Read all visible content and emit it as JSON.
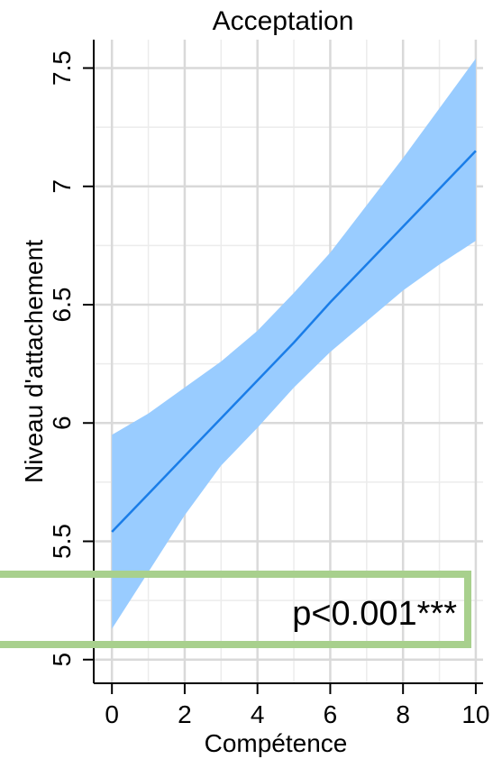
{
  "chart_data": {
    "type": "line",
    "title": "Acceptation",
    "xlabel": "Compétence",
    "ylabel": "Niveau d'attachement",
    "xlim": [
      -0.5,
      10.2
    ],
    "ylim": [
      4.9,
      7.62
    ],
    "xticks": [
      0,
      2,
      4,
      6,
      8,
      10
    ],
    "xtick_labels": [
      "0",
      "2",
      "4",
      "6",
      "8",
      "10"
    ],
    "yticks": [
      5,
      5.5,
      6,
      6.5,
      7,
      7.5
    ],
    "ytick_labels": [
      "5",
      "5.5",
      "6",
      "6.5",
      "7",
      "7.5"
    ],
    "x_minor_grid": [
      1,
      3,
      5,
      7,
      9
    ],
    "y_minor_grid": [
      5.25,
      5.75,
      6.25,
      6.75,
      7.25
    ],
    "grid": true,
    "series": [
      {
        "x": [
          0,
          1,
          2,
          3,
          4,
          5,
          6,
          7,
          8,
          9,
          10
        ],
        "y": [
          5.54,
          5.7,
          5.86,
          6.02,
          6.18,
          6.34,
          6.51,
          6.67,
          6.83,
          6.99,
          7.15
        ],
        "ci_lower": [
          5.13,
          5.37,
          5.61,
          5.82,
          5.98,
          6.15,
          6.3,
          6.43,
          6.56,
          6.67,
          6.77
        ],
        "ci_upper": [
          5.95,
          6.04,
          6.15,
          6.26,
          6.39,
          6.55,
          6.72,
          6.92,
          7.12,
          7.33,
          7.54
        ],
        "color": "#1a7de8",
        "band_color": "#99ccff"
      }
    ],
    "annotation": {
      "text": "p<0.001***",
      "box_color": "#a8d08d"
    }
  }
}
